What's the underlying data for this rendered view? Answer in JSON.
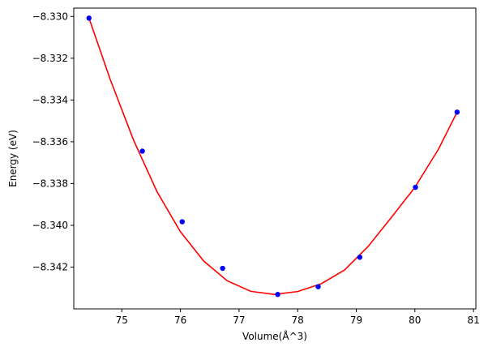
{
  "chart_data": {
    "type": "scatter",
    "title": "",
    "xlabel": "Volume(Å^3)",
    "ylabel": "Energy (eV)",
    "xlim": [
      74.18,
      81.04
    ],
    "ylim": [
      -8.344,
      -8.3296
    ],
    "xticks": [
      75,
      76,
      77,
      78,
      79,
      80,
      81
    ],
    "xtick_labels": [
      "75",
      "76",
      "77",
      "78",
      "79",
      "80",
      "81"
    ],
    "yticks": [
      -8.342,
      -8.34,
      -8.338,
      -8.336,
      -8.334,
      -8.332,
      -8.33
    ],
    "ytick_labels": [
      "−8.342",
      "−8.340",
      "−8.338",
      "−8.336",
      "−8.334",
      "−8.332",
      "−8.330"
    ],
    "grid": false,
    "legend": "none",
    "series": [
      {
        "kind": "points",
        "color": "#0000ff",
        "x": [
          74.44,
          75.35,
          76.03,
          76.72,
          77.66,
          78.35,
          79.06,
          80.01,
          80.72
        ],
        "y": [
          -8.33008,
          -8.33645,
          -8.33983,
          -8.34206,
          -8.34331,
          -8.34294,
          -8.34153,
          -8.33818,
          -8.33458
        ]
      },
      {
        "kind": "fit-curve",
        "color": "#ff0000",
        "x": [
          74.44,
          74.8,
          75.2,
          75.6,
          76.0,
          76.4,
          76.8,
          77.2,
          77.6,
          78.0,
          78.4,
          78.8,
          79.2,
          79.6,
          80.0,
          80.4,
          80.72
        ],
        "y": [
          -8.33008,
          -8.333,
          -8.33592,
          -8.33839,
          -8.34031,
          -8.34172,
          -8.34266,
          -8.34316,
          -8.34331,
          -8.34317,
          -8.3428,
          -8.34214,
          -8.34102,
          -8.33962,
          -8.33818,
          -8.33637,
          -8.33458
        ]
      }
    ]
  }
}
